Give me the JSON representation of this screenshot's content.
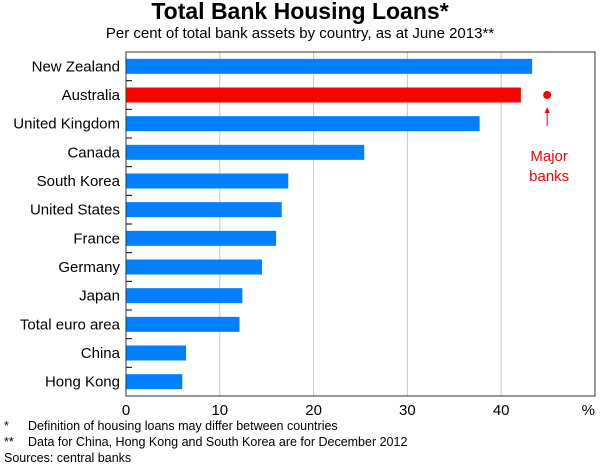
{
  "chart_data": {
    "type": "bar",
    "orientation": "horizontal",
    "title": "Total Bank Housing Loans*",
    "subtitle": "Per cent of total bank assets by country, as at June 2013**",
    "xlabel": "%",
    "xlim": [
      0,
      50
    ],
    "xticks": [
      "0",
      "10",
      "20",
      "30",
      "40"
    ],
    "grid": true,
    "categories": [
      "New Zealand",
      "Australia",
      "United Kingdom",
      "Canada",
      "South Korea",
      "United States",
      "France",
      "Germany",
      "Japan",
      "Total euro area",
      "China",
      "Hong Kong"
    ],
    "values": [
      43.3,
      42.1,
      37.7,
      25.4,
      17.3,
      16.6,
      16.0,
      14.5,
      12.4,
      12.1,
      6.4,
      6.0
    ],
    "colors": {
      "default": "#0080ff",
      "highlight": "#ff0000"
    },
    "highlight": "Australia",
    "annotation": {
      "label_line1": "Major",
      "label_line2": "banks",
      "value": 44.9,
      "category": "Australia",
      "color": "#ff0000"
    }
  },
  "notes": {
    "n1_mark": "*",
    "n1": "Definition of housing loans may differ between countries",
    "n2_mark": "**",
    "n2": "Data for China, Hong Kong and South Korea are for December 2012",
    "sources": "Sources: central banks"
  }
}
